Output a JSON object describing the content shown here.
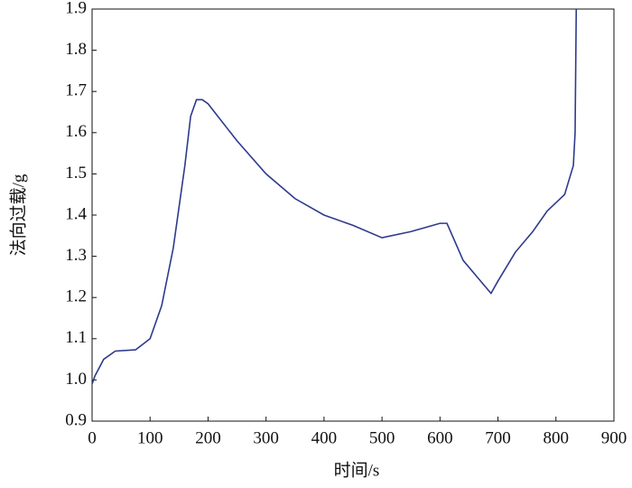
{
  "chart_data": {
    "type": "line",
    "xlabel": "时间/s",
    "ylabel": "法向过载/g",
    "x": [
      0,
      5,
      20,
      40,
      75,
      100,
      120,
      140,
      160,
      170,
      180,
      190,
      200,
      250,
      300,
      350,
      400,
      450,
      500,
      550,
      600,
      612,
      640,
      670,
      688,
      700,
      730,
      760,
      785,
      800,
      815,
      830,
      833,
      835
    ],
    "values": [
      0.99,
      1.01,
      1.05,
      1.07,
      1.073,
      1.1,
      1.18,
      1.32,
      1.52,
      1.64,
      1.68,
      1.68,
      1.67,
      1.58,
      1.5,
      1.44,
      1.4,
      1.375,
      1.345,
      1.36,
      1.38,
      1.38,
      1.29,
      1.24,
      1.21,
      1.24,
      1.31,
      1.36,
      1.41,
      1.43,
      1.45,
      1.52,
      1.6,
      1.9
    ],
    "color": "#2e3a8c",
    "xlim": [
      0,
      900
    ],
    "ylim": [
      0.9,
      1.9
    ],
    "xticks": [
      0,
      100,
      200,
      300,
      400,
      500,
      600,
      700,
      800,
      900
    ],
    "yticks": [
      0.9,
      {
        "value": 1,
        "label": "1.0"
      },
      1.1,
      1.2,
      1.3,
      1.4,
      1.5,
      1.6,
      1.7,
      1.8,
      1.9
    ]
  }
}
